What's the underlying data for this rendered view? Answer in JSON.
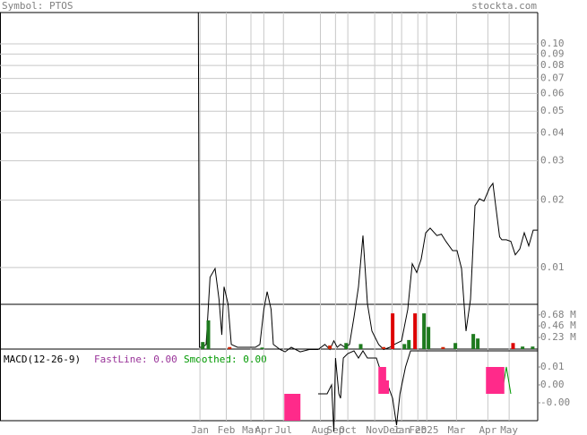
{
  "header": {
    "symbol": "Symbol: PTOS",
    "site": "stockta.com"
  },
  "chart_data": [
    {
      "type": "line",
      "log_scale": true,
      "grid": true,
      "xlim": [
        -354,
        606
      ],
      "xticks": [
        {
          "value": 3,
          "label": "Jan"
        },
        {
          "value": 50,
          "label": "Feb"
        },
        {
          "value": 94,
          "label": "Mar"
        },
        {
          "value": 117,
          "label": "Apr"
        },
        {
          "value": 152,
          "label": "Jul"
        },
        {
          "value": 218,
          "label": "Aug"
        },
        {
          "value": 245,
          "label": "Sep"
        },
        {
          "value": 267,
          "label": "Oct"
        },
        {
          "value": 315,
          "label": "Nov"
        },
        {
          "value": 346,
          "label": "Dec"
        },
        {
          "value": 363,
          "label": "Jan"
        },
        {
          "value": 392,
          "label": "Feb"
        },
        {
          "value": 408,
          "label": "2025"
        },
        {
          "value": 461,
          "label": "Mar"
        },
        {
          "value": 517,
          "label": "Apr"
        },
        {
          "value": 555,
          "label": "May"
        }
      ],
      "ylim": [
        0.00432,
        0.138
      ],
      "yticks": [
        0.01,
        0.02,
        0.03,
        0.04,
        0.05,
        0.06,
        0.07,
        0.08,
        0.09,
        {
          "value": 0.1,
          "label": "0.10"
        }
      ],
      "series": [
        {
          "color": "#000000",
          "x": [
            0,
            2,
            8,
            14,
            21,
            30,
            37,
            42,
            46,
            53,
            59,
            70,
            86,
            102,
            110,
            117,
            123,
            130,
            134,
            146,
            155,
            166,
            182,
            198,
            214,
            226,
            235,
            242,
            248,
            254,
            262,
            270,
            278,
            286,
            294,
            302,
            310,
            322,
            331,
            342,
            350,
            363,
            374,
            382,
            390,
            398,
            406,
            414,
            426,
            434,
            442,
            454,
            462,
            470,
            478,
            486,
            494,
            502,
            510,
            520,
            526,
            531,
            538,
            542,
            550,
            558,
            566,
            574,
            582,
            590,
            598,
            606
          ],
          "values": [
            0.138,
            0.0044,
            0.0044,
            0.00453,
            0.00904,
            0.0099,
            0.0072,
            0.005,
            0.0082,
            0.0069,
            0.00453,
            0.0044,
            0.0044,
            0.0044,
            0.00453,
            0.0065,
            0.0078,
            0.0065,
            0.00453,
            0.0043,
            0.0042,
            0.0044,
            0.0042,
            0.0043,
            0.0043,
            0.00453,
            0.0043,
            0.0047,
            0.0044,
            0.00453,
            0.0044,
            0.00453,
            0.006,
            0.0082,
            0.0139,
            0.0069,
            0.0052,
            0.00453,
            0.0043,
            0.0044,
            0.00453,
            0.0047,
            0.0065,
            0.0104,
            0.0095,
            0.0109,
            0.0143,
            0.015,
            0.0139,
            0.0141,
            0.0131,
            0.0119,
            0.0119,
            0.0099,
            0.0052,
            0.0072,
            0.0189,
            0.0203,
            0.0198,
            0.0227,
            0.0238,
            0.0189,
            0.0137,
            0.0133,
            0.0133,
            0.0131,
            0.0114,
            0.0121,
            0.0143,
            0.0125,
            0.0147,
            0.0147
          ]
        }
      ]
    },
    {
      "type": "bar",
      "ylim": [
        0,
        0.89
      ],
      "yticks": [
        {
          "value": 0.23,
          "label": "0.23 M"
        },
        {
          "value": 0.46,
          "label": "0.46 M"
        },
        {
          "value": 0.68,
          "label": "0.68 M"
        }
      ],
      "series": [
        {
          "x": [
            8,
            18,
            56,
            114,
            235,
            264,
            290,
            331,
            347,
            368,
            376,
            387,
            403,
            411,
            437,
            459,
            491,
            499,
            562,
            579,
            597
          ],
          "values": [
            0.14,
            0.57,
            0.04,
            0.03,
            0.07,
            0.12,
            0.1,
            0.04,
            0.71,
            0.1,
            0.18,
            0.71,
            0.71,
            0.44,
            0.04,
            0.12,
            0.3,
            0.21,
            0.12,
            0.05,
            0.05
          ],
          "colors": [
            "#1e7a1e",
            "#1e7a1e",
            "#cc2200",
            "#1e7a1e",
            "#cc2200",
            "#1e7a1e",
            "#1e7a1e",
            "#cc2200",
            "#dd0000",
            "#1e7a1e",
            "#1e7a1e",
            "#dd0000",
            "#1e7a1e",
            "#1e7a1e",
            "#cc2200",
            "#1e7a1e",
            "#1e7a1e",
            "#1e7a1e",
            "#dd0000",
            "#1e7a1e",
            "#1e7a1e"
          ]
        }
      ]
    },
    {
      "type": "line",
      "title": "MACD(12-26-9)",
      "ylim": [
        -0.006,
        0.01
      ],
      "yticks": [
        {
          "value": -0.002,
          "label": "-0.00"
        },
        {
          "value": 0.002,
          "label": "0.00"
        },
        {
          "value": 0.006,
          "label": "0.01"
        }
      ],
      "series": [
        {
          "name": "FastLine: 0.00",
          "color": "#993399",
          "line_color": "#000000",
          "x": [
            214,
            230,
            238,
            242,
            245,
            251,
            254,
            259,
            267,
            278,
            286,
            294,
            302,
            318,
            331,
            338,
            347,
            354,
            360,
            370,
            379,
            606
          ],
          "values": [
            0,
            0,
            0.002,
            -0.0084,
            0.008,
            0,
            -0.001,
            0.008,
            0.009,
            0.0096,
            0.008,
            0.0096,
            0.008,
            0.008,
            0.003,
            0.002,
            -0.001,
            -0.007,
            0,
            0.006,
            0.0096,
            0.0096
          ]
        },
        {
          "name": "Smoothed: 0.00",
          "color": "#009900",
          "line_color": "#009900",
          "x": [
            542,
            550,
            558
          ],
          "values": [
            0,
            0.006,
            0
          ]
        },
        {
          "type": "bar",
          "color": "#ff2a8a",
          "x": [
            158,
            163,
            168,
            173,
            178,
            326,
            331,
            336,
            518,
            523,
            528,
            534,
            538,
            542
          ],
          "values": [
            -0.006,
            -0.006,
            -0.006,
            -0.006,
            -0.006,
            0.006,
            0.006,
            0.003,
            0.006,
            0.006,
            0.006,
            0.006,
            0.006,
            0.006
          ]
        }
      ]
    }
  ]
}
